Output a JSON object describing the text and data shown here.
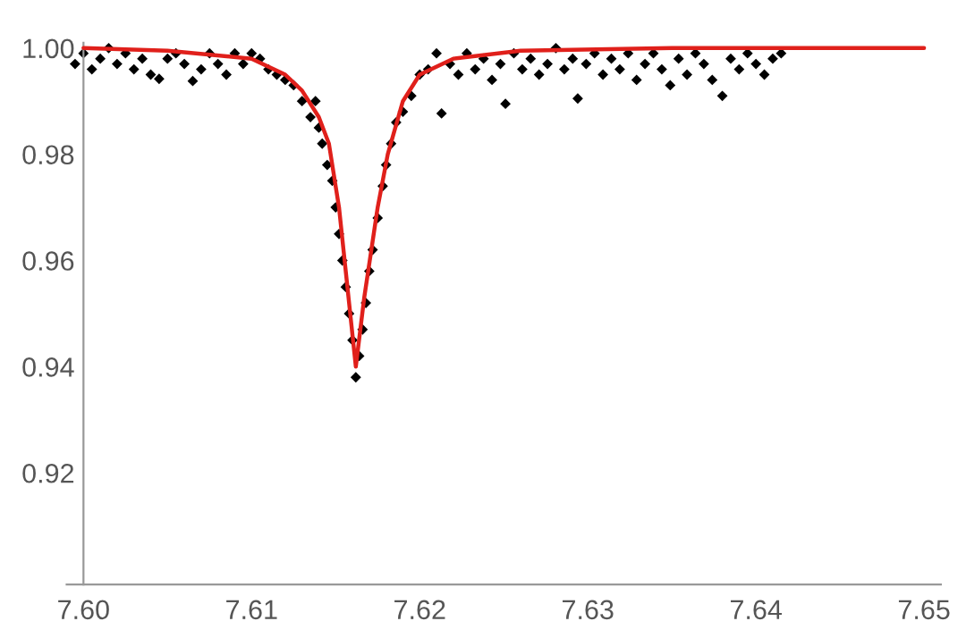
{
  "chart_data": {
    "type": "scatter",
    "xlim": [
      7.599,
      7.651
    ],
    "ylim": [
      0.899,
      1.001
    ],
    "xticks": [
      {
        "value": 7.6,
        "label": "7.60"
      },
      {
        "value": 7.61,
        "label": "7.61"
      },
      {
        "value": 7.62,
        "label": "7.62"
      },
      {
        "value": 7.63,
        "label": "7.63"
      },
      {
        "value": 7.64,
        "label": "7.64"
      },
      {
        "value": 7.65,
        "label": "7.65"
      }
    ],
    "yticks": [
      {
        "value": 0.92,
        "label": "0.92"
      },
      {
        "value": 0.94,
        "label": "0.94"
      },
      {
        "value": 0.96,
        "label": "0.96"
      },
      {
        "value": 0.98,
        "label": "0.98"
      },
      {
        "value": 1.0,
        "label": "1.00"
      }
    ],
    "grid": false,
    "legend": false,
    "marker": "diamond",
    "series": [
      {
        "color": "#000000",
        "x": [
          7.5995,
          7.6,
          7.6005,
          7.601,
          7.6015,
          7.602,
          7.6025,
          7.603,
          7.6035,
          7.604,
          7.6045,
          7.605,
          7.6055,
          7.606,
          7.6065,
          7.607,
          7.6075,
          7.608,
          7.6085,
          7.609,
          7.6095,
          7.61,
          7.6105,
          7.611,
          7.6115,
          7.612,
          7.6125,
          7.613,
          7.6135,
          7.6138,
          7.614,
          7.6142,
          7.6145,
          7.6148,
          7.615,
          7.6152,
          7.6154,
          7.6156,
          7.6158,
          7.616,
          7.6162,
          7.6164,
          7.6166,
          7.6168,
          7.617,
          7.6172,
          7.6175,
          7.6178,
          7.618,
          7.6183,
          7.6186,
          7.619,
          7.6195,
          7.62,
          7.6205,
          7.621,
          7.6213,
          7.6218,
          7.6223,
          7.6228,
          7.6233,
          7.6238,
          7.6243,
          7.6248,
          7.6251,
          7.6256,
          7.6261,
          7.6266,
          7.6271,
          7.6276,
          7.6281,
          7.6286,
          7.6291,
          7.6294,
          7.6299,
          7.6304,
          7.6309,
          7.6314,
          7.6319,
          7.6324,
          7.6329,
          7.6334,
          7.6339,
          7.6344,
          7.6349,
          7.6354,
          7.6359,
          7.6364,
          7.6369,
          7.6374,
          7.638,
          7.6385,
          7.639,
          7.6395,
          7.64,
          7.6405,
          7.641,
          7.6415
        ],
        "values": [
          0.997,
          0.999,
          0.996,
          0.998,
          1.0,
          0.997,
          0.999,
          0.996,
          0.998,
          0.995,
          0.9942,
          0.998,
          0.999,
          0.997,
          0.9938,
          0.996,
          0.999,
          0.997,
          0.995,
          0.999,
          0.997,
          0.999,
          0.998,
          0.996,
          0.995,
          0.994,
          0.993,
          0.99,
          0.987,
          0.99,
          0.985,
          0.982,
          0.978,
          0.975,
          0.97,
          0.965,
          0.96,
          0.955,
          0.95,
          0.945,
          0.938,
          0.942,
          0.947,
          0.952,
          0.958,
          0.962,
          0.968,
          0.974,
          0.978,
          0.982,
          0.986,
          0.988,
          0.991,
          0.995,
          0.996,
          0.999,
          0.9877,
          0.997,
          0.995,
          0.999,
          0.996,
          0.998,
          0.994,
          0.997,
          0.9895,
          0.999,
          0.996,
          0.998,
          0.995,
          0.997,
          1.0,
          0.996,
          0.998,
          0.9905,
          0.997,
          0.999,
          0.995,
          0.998,
          0.996,
          0.999,
          0.994,
          0.997,
          0.999,
          0.996,
          0.993,
          0.998,
          0.995,
          0.999,
          0.997,
          0.994,
          0.991,
          0.998,
          0.996,
          0.999,
          0.997,
          0.995,
          0.998,
          0.999
        ]
      },
      {
        "type": "line",
        "color": "#e0201b",
        "marker": "none",
        "x": [
          7.6,
          7.605,
          7.61,
          7.612,
          7.613,
          7.614,
          7.6146,
          7.6152,
          7.6157,
          7.6162,
          7.6167,
          7.6175,
          7.6181,
          7.619,
          7.62,
          7.622,
          7.626,
          7.635,
          7.65
        ],
        "values": [
          1.0,
          0.9995,
          0.998,
          0.995,
          0.992,
          0.987,
          0.982,
          0.97,
          0.955,
          0.94,
          0.953,
          0.97,
          0.98,
          0.99,
          0.995,
          0.998,
          0.9995,
          1.0,
          1.0
        ]
      }
    ]
  }
}
